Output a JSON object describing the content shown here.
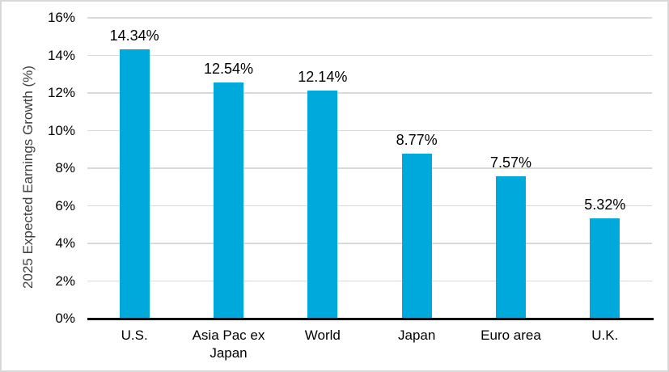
{
  "chart_data": {
    "type": "bar",
    "title": "",
    "xlabel": "",
    "ylabel": "2025 Expected Earnings Growth (%)",
    "categories": [
      "U.S.",
      "Asia Pac ex Japan",
      "World",
      "Japan",
      "Euro area",
      "U.K."
    ],
    "values": [
      14.34,
      12.54,
      12.14,
      8.77,
      7.57,
      5.32
    ],
    "data_labels": [
      "14.34%",
      "12.54%",
      "12.14%",
      "8.77%",
      "7.57%",
      "5.32%"
    ],
    "ylim": [
      0,
      16
    ],
    "ytick_step": 2,
    "yticks": [
      0,
      2,
      4,
      6,
      8,
      10,
      12,
      14,
      16
    ],
    "ytick_labels": [
      "0%",
      "2%",
      "4%",
      "6%",
      "8%",
      "10%",
      "12%",
      "14%",
      "16%"
    ],
    "grid": true,
    "legend": false,
    "colors": {
      "bar": "#00a9dc",
      "gridline": "#d9d9d9",
      "axis_line": "#000000",
      "tick_text": "#000000",
      "data_label_text": "#000000",
      "axis_title_text": "#404040",
      "frame_border": "#d9d9d9",
      "background": "#ffffff"
    }
  }
}
